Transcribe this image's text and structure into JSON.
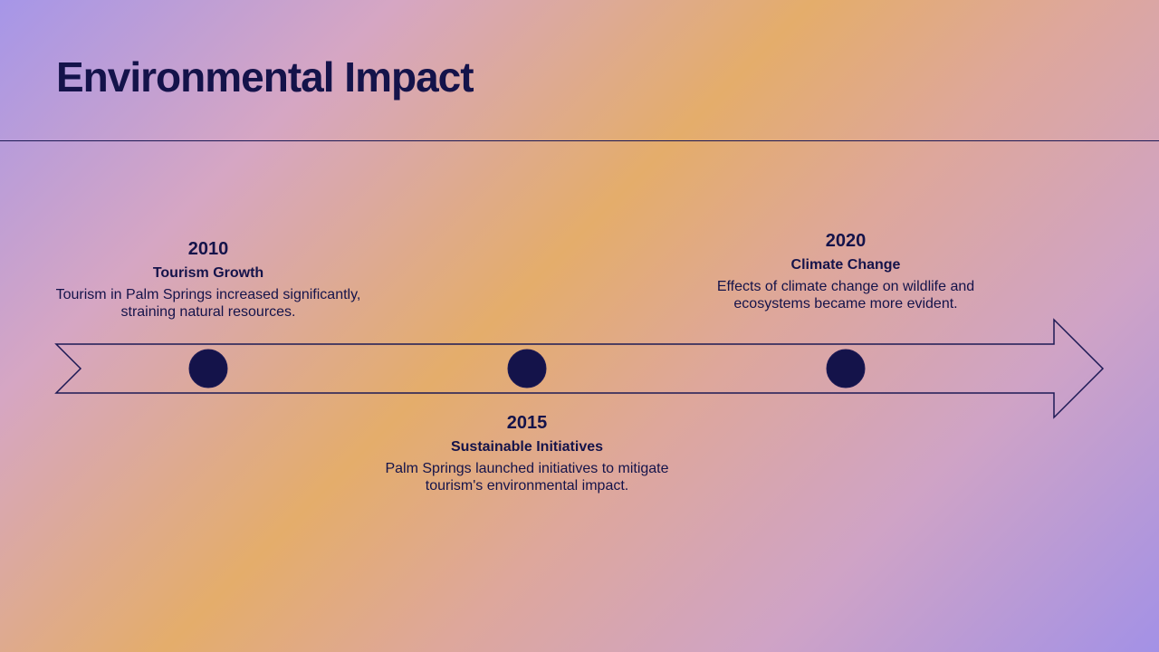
{
  "slide": {
    "title": "Environmental Impact"
  },
  "colors": {
    "text": "#14134a",
    "dot": "#14134a",
    "line": "#1d1a55"
  },
  "timeline": {
    "events": [
      {
        "year": "2010",
        "heading": "Tourism Growth",
        "description": "Tourism in Palm Springs increased significantly, straining natural resources."
      },
      {
        "year": "2015",
        "heading": "Sustainable Initiatives",
        "description": "Palm Springs launched initiatives to mitigate tourism's environmental impact."
      },
      {
        "year": "2020",
        "heading": "Climate Change",
        "description": "Effects of climate change on wildlife and ecosystems became more evident."
      }
    ]
  }
}
